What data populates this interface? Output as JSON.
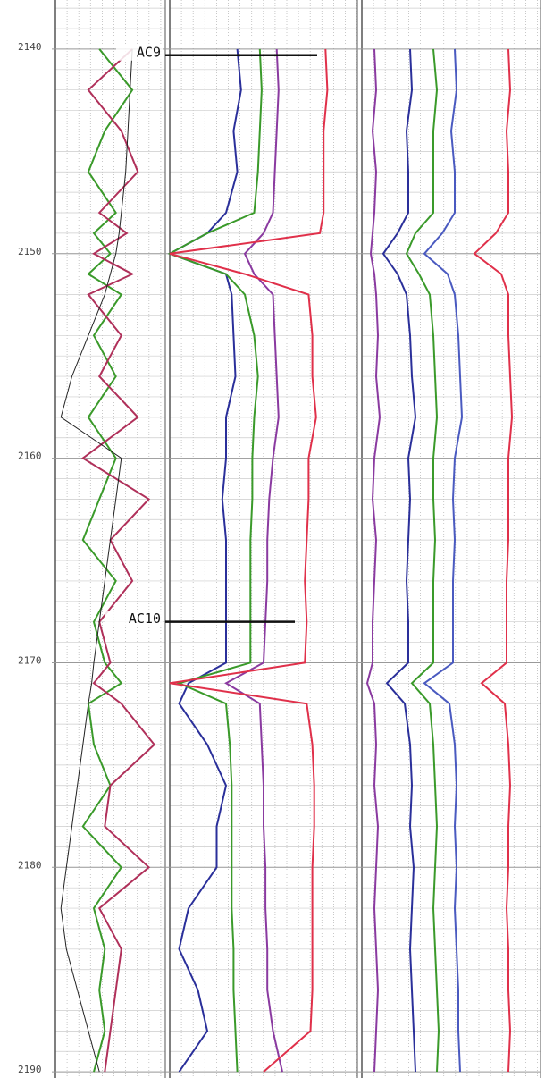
{
  "chart_data": {
    "type": "well-log",
    "orientation": "vertical",
    "ylim": [
      2137.6,
      2190.3
    ],
    "yticks": [
      2140,
      2150,
      2160,
      2170,
      2180,
      2190
    ],
    "xlim": [
      0,
      100
    ],
    "grid": true,
    "x": [
      2140,
      2142,
      2144,
      2146,
      2148,
      2149,
      2150,
      2151,
      2152,
      2154,
      2156,
      2158,
      2160,
      2162,
      2164,
      2166,
      2168,
      2170,
      2171,
      2172,
      2174,
      2176,
      2178,
      2180,
      2182,
      2184,
      2186,
      2188,
      2190
    ],
    "series": [
      {
        "track": 0,
        "color": "#3a9a2a",
        "values": [
          40,
          70,
          45,
          30,
          55,
          35,
          50,
          30,
          60,
          35,
          55,
          30,
          55,
          40,
          25,
          55,
          35,
          45,
          60,
          30,
          35,
          50,
          25,
          60,
          35,
          45,
          40,
          45,
          35
        ]
      },
      {
        "track": 0,
        "color": "#b0305a",
        "values": [
          70,
          30,
          60,
          75,
          40,
          65,
          35,
          70,
          30,
          60,
          40,
          75,
          25,
          85,
          50,
          70,
          40,
          50,
          35,
          60,
          90,
          50,
          45,
          85,
          40,
          60,
          55,
          50,
          45
        ]
      },
      {
        "track": 0,
        "color": "#222222",
        "values": [
          70,
          68,
          66,
          64,
          60,
          58,
          55,
          50,
          45,
          30,
          15,
          5,
          60,
          55,
          50,
          45,
          40,
          35,
          33,
          30,
          25,
          20,
          15,
          10,
          5,
          10,
          20,
          30,
          40
        ]
      },
      {
        "track": 1,
        "color": "#2a2f9a",
        "values": [
          36,
          38,
          34,
          36,
          30,
          20,
          0,
          30,
          33,
          34,
          35,
          30,
          30,
          28,
          30,
          30,
          30,
          30,
          10,
          5,
          20,
          30,
          25,
          25,
          10,
          5,
          15,
          20,
          5
        ]
      },
      {
        "track": 1,
        "color": "#3a9a2a",
        "values": [
          48,
          49,
          48,
          47,
          45,
          20,
          0,
          30,
          40,
          45,
          47,
          45,
          44,
          44,
          43,
          43,
          43,
          43,
          5,
          30,
          32,
          33,
          33,
          33,
          33,
          34,
          34,
          35,
          36
        ]
      },
      {
        "track": 1,
        "color": "#8a3aa0",
        "values": [
          57,
          58,
          57,
          56,
          55,
          50,
          40,
          45,
          55,
          56,
          57,
          58,
          55,
          53,
          52,
          52,
          51,
          50,
          30,
          48,
          49,
          50,
          50,
          51,
          51,
          52,
          52,
          55,
          60
        ]
      },
      {
        "track": 1,
        "color": "#e0304a",
        "values": [
          83,
          84,
          82,
          82,
          82,
          80,
          0,
          40,
          74,
          76,
          76,
          78,
          74,
          74,
          73,
          72,
          73,
          72,
          0,
          73,
          76,
          77,
          77,
          76,
          76,
          76,
          76,
          75,
          50
        ]
      },
      {
        "track": 2,
        "color": "#8a3aa0",
        "values": [
          7,
          8,
          6,
          8,
          7,
          6,
          5,
          7,
          8,
          9,
          8,
          10,
          7,
          6,
          8,
          7,
          6,
          6,
          3,
          7,
          8,
          7,
          9,
          8,
          7,
          8,
          9,
          8,
          7
        ]
      },
      {
        "track": 2,
        "color": "#2a2f9a",
        "values": [
          27,
          28,
          25,
          26,
          26,
          20,
          12,
          20,
          25,
          27,
          28,
          30,
          26,
          27,
          26,
          25,
          26,
          26,
          14,
          24,
          27,
          28,
          27,
          29,
          28,
          27,
          28,
          29,
          30
        ]
      },
      {
        "track": 2,
        "color": "#3a9a2a",
        "values": [
          40,
          42,
          40,
          40,
          40,
          30,
          25,
          32,
          38,
          40,
          41,
          42,
          40,
          40,
          41,
          40,
          40,
          40,
          28,
          38,
          40,
          41,
          42,
          41,
          40,
          41,
          42,
          43,
          42
        ]
      },
      {
        "track": 2,
        "color": "#4a5ac0",
        "values": [
          52,
          53,
          50,
          52,
          52,
          45,
          35,
          48,
          52,
          54,
          55,
          56,
          52,
          51,
          52,
          51,
          51,
          51,
          35,
          49,
          52,
          53,
          52,
          53,
          52,
          53,
          54,
          54,
          55
        ]
      },
      {
        "track": 2,
        "color": "#e0304a",
        "values": [
          82,
          83,
          81,
          82,
          82,
          75,
          63,
          78,
          82,
          82,
          83,
          84,
          82,
          82,
          82,
          81,
          81,
          81,
          67,
          80,
          82,
          83,
          82,
          82,
          81,
          82,
          82,
          83,
          82
        ]
      }
    ],
    "markers": [
      {
        "label": "AC9",
        "depth": 2140.3
      },
      {
        "label": "AC10",
        "depth": 2168
      }
    ]
  }
}
